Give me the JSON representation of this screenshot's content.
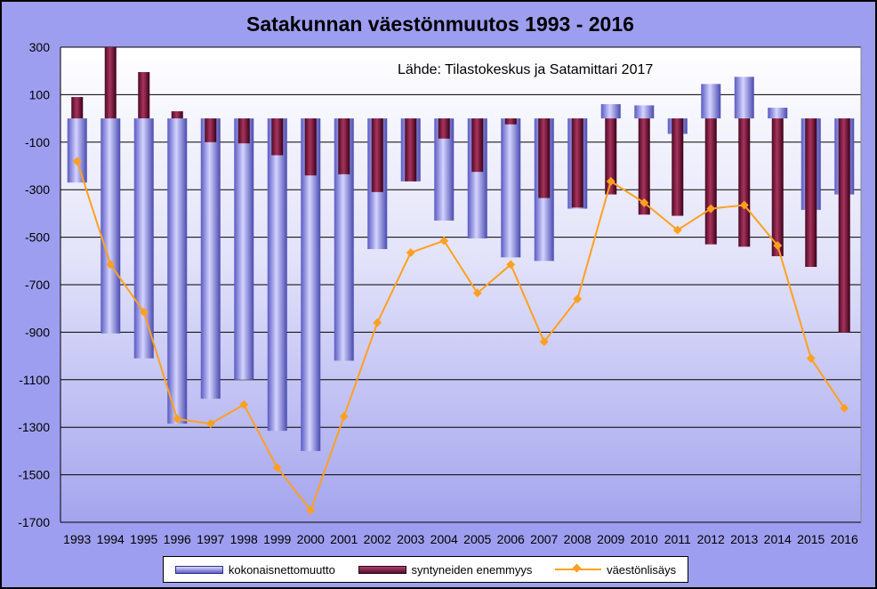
{
  "chart_data": {
    "type": "bar",
    "title": "Satakunnan väestönmuutos 1993 - 2016",
    "source_note": "Lähde: Tilastokeskus ja Satamittari 2017",
    "categories": [
      "1993",
      "1994",
      "1995",
      "1996",
      "1997",
      "1998",
      "1999",
      "2000",
      "2001",
      "2002",
      "2003",
      "2004",
      "2005",
      "2006",
      "2007",
      "2008",
      "2009",
      "2010",
      "2011",
      "2012",
      "2013",
      "2014",
      "2015",
      "2016"
    ],
    "ylim": [
      -1700,
      300
    ],
    "yticks": [
      300,
      100,
      -100,
      -300,
      -500,
      -700,
      -900,
      -1100,
      -1300,
      -1500,
      -1700
    ],
    "grid": true,
    "legend_position": "bottom",
    "series": [
      {
        "name": "kokonaisnettomuutto",
        "kind": "bar",
        "color": "#7878e0",
        "values": [
          -270,
          -905,
          -1010,
          -1285,
          -1180,
          -1100,
          -1315,
          -1400,
          -1020,
          -550,
          -265,
          -430,
          -505,
          -585,
          -600,
          -380,
          60,
          55,
          -65,
          145,
          175,
          45,
          -385,
          -320
        ]
      },
      {
        "name": "syntyneiden enemmyys",
        "kind": "bar",
        "color": "#801040",
        "values": [
          90,
          300,
          195,
          30,
          -100,
          -105,
          -155,
          -240,
          -235,
          -310,
          -265,
          -85,
          -225,
          -25,
          -335,
          -375,
          -320,
          -405,
          -410,
          -530,
          -540,
          -580,
          -625,
          -900
        ]
      },
      {
        "name": "väestönlisäys",
        "kind": "line",
        "color": "#ffa020",
        "values": [
          -180,
          -615,
          -815,
          -1265,
          -1285,
          -1205,
          -1470,
          -1650,
          -1255,
          -860,
          -565,
          -515,
          -735,
          -615,
          -940,
          -760,
          -265,
          -355,
          -470,
          -380,
          -365,
          -535,
          -1010,
          -1220
        ]
      }
    ]
  },
  "legend": {
    "item1": "kokonaisnettomuutto",
    "item2": "syntyneiden enemmyys",
    "item3": "väestönlisäys"
  }
}
